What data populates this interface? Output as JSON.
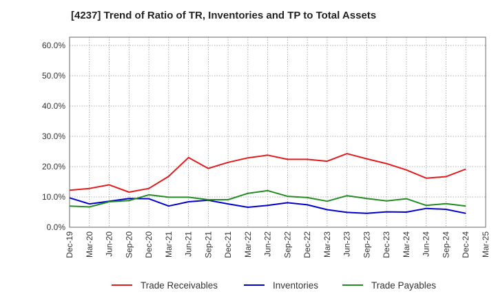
{
  "chart_data": {
    "type": "line",
    "title": "[4237]  Trend of Ratio of TR, Inventories and TP to Total Assets",
    "xlabel": "",
    "ylabel": "",
    "x": [
      "Dec-19",
      "Mar-20",
      "Jun-20",
      "Sep-20",
      "Dec-20",
      "Mar-21",
      "Jun-21",
      "Sep-21",
      "Dec-21",
      "Mar-22",
      "Jun-22",
      "Sep-22",
      "Dec-22",
      "Mar-23",
      "Jun-23",
      "Sep-23",
      "Dec-23",
      "Mar-24",
      "Jun-24",
      "Sep-24",
      "Dec-24"
    ],
    "x_tick_labels": [
      "Dec-19",
      "Mar-20",
      "Jun-20",
      "Sep-20",
      "Dec-20",
      "Mar-21",
      "Jun-21",
      "Sep-21",
      "Dec-21",
      "Mar-22",
      "Jun-22",
      "Sep-22",
      "Dec-22",
      "Mar-23",
      "Jun-23",
      "Sep-23",
      "Dec-23",
      "Mar-24",
      "Jun-24",
      "Sep-24",
      "Dec-24",
      "Mar-25"
    ],
    "y_ticks": [
      0,
      10,
      20,
      30,
      40,
      50,
      60
    ],
    "y_tick_labels": [
      "0.0%",
      "10.0%",
      "20.0%",
      "30.0%",
      "40.0%",
      "50.0%",
      "60.0%"
    ],
    "ylim": [
      0,
      60
    ],
    "grid": true,
    "legend_position": "bottom",
    "series": [
      {
        "name": "Trade Receivables",
        "color": "#e31a1c",
        "values": [
          12.2,
          12.8,
          14.0,
          11.6,
          12.8,
          16.8,
          23.0,
          19.4,
          21.4,
          22.9,
          23.8,
          22.4,
          22.4,
          21.8,
          24.3,
          22.6,
          21.0,
          18.9,
          16.2,
          16.7,
          19.2
        ]
      },
      {
        "name": "Inventories",
        "color": "#0000cc",
        "values": [
          9.7,
          7.7,
          8.6,
          9.5,
          9.4,
          7.0,
          8.4,
          8.9,
          7.7,
          6.6,
          7.2,
          8.1,
          7.4,
          5.8,
          4.9,
          4.6,
          5.1,
          5.0,
          6.2,
          5.9,
          4.6
        ]
      },
      {
        "name": "Trade Payables",
        "color": "#228b22",
        "values": [
          7.0,
          6.7,
          8.4,
          8.8,
          10.7,
          9.9,
          9.9,
          9.1,
          9.1,
          11.2,
          12.1,
          10.2,
          9.8,
          8.6,
          10.4,
          9.5,
          8.7,
          9.4,
          7.2,
          7.8,
          7.0
        ]
      }
    ]
  }
}
